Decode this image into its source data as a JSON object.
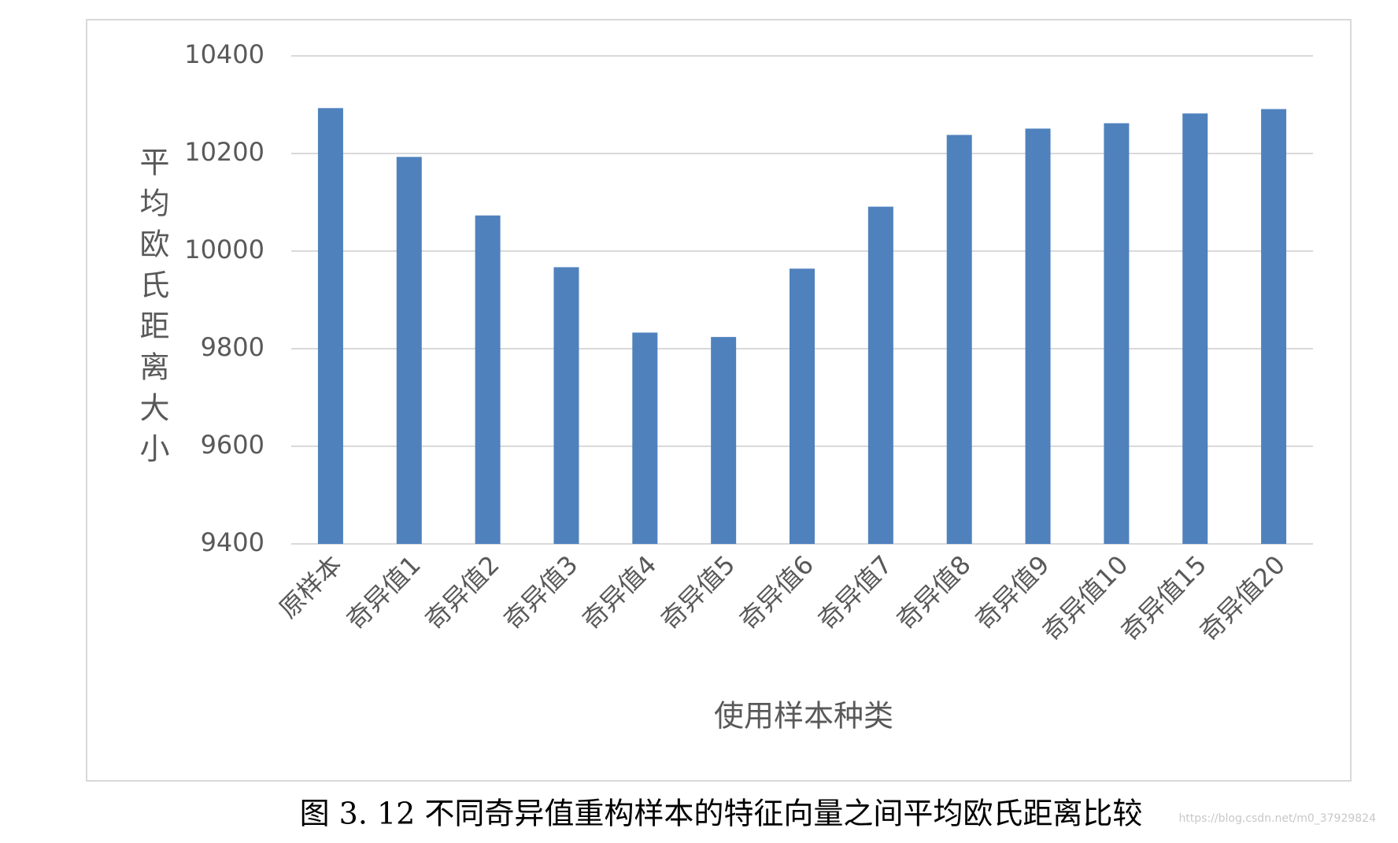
{
  "chart_data": {
    "type": "bar",
    "x_label": "使用样本种类",
    "y_label": "平均欧氏距离大小",
    "caption": "图 3. 12  不同奇异值重构样本的特征向量之间平均欧氏距离比较",
    "watermark": "https://blog.csdn.net/m0_37929824",
    "categories": [
      "原样本",
      "奇异值1",
      "奇异值2",
      "奇异值3",
      "奇异值4",
      "奇异值5",
      "奇异值6",
      "奇异值7",
      "奇异值8",
      "奇异值9",
      "奇异值10",
      "奇异值15",
      "奇异值20"
    ],
    "values": [
      10293,
      10193,
      10073,
      9967,
      9833,
      9824,
      9964,
      10091,
      10238,
      10251,
      10262,
      10282,
      10291
    ],
    "color": "#4f81bd",
    "ylim": [
      9400,
      10400
    ],
    "yticks": [
      9400,
      9600,
      9800,
      10000,
      10200,
      10400
    ],
    "grid": true
  }
}
